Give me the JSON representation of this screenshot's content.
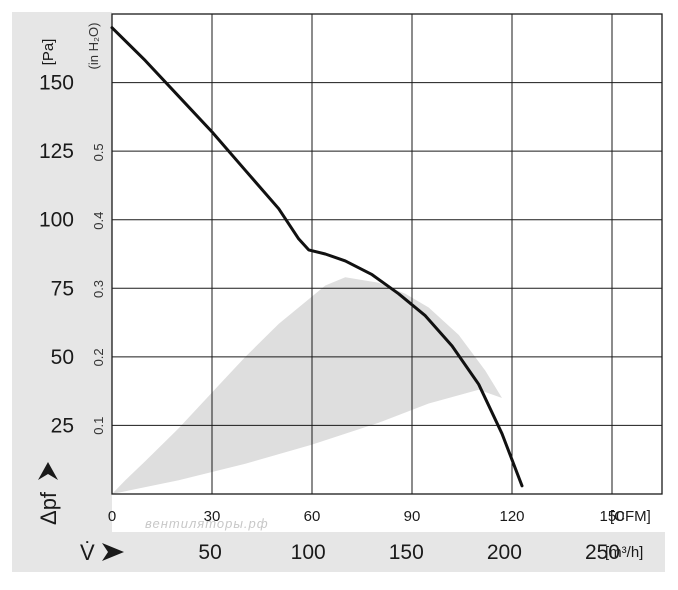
{
  "chart_data": {
    "type": "line",
    "watermark": "вентиляторы.рф",
    "axes": {
      "x_primary": {
        "unit": "[CFM]",
        "range": [
          0,
          165
        ],
        "ticks": [
          0,
          30,
          60,
          90,
          120,
          150
        ]
      },
      "x_secondary": {
        "symbol": "V̇",
        "unit": "[m³/h]",
        "ticks": [
          50,
          100,
          150,
          200,
          250
        ]
      },
      "y_primary": {
        "symbol": "Δpf",
        "unit": "[Pa]",
        "range": [
          0,
          175
        ],
        "ticks": [
          25,
          50,
          75,
          100,
          125,
          150
        ]
      },
      "y_secondary": {
        "unit": "(in H₂O)",
        "ticks": [
          0.1,
          0.2,
          0.3,
          0.4,
          0.5
        ]
      }
    },
    "grid": true,
    "series": [
      {
        "points": [
          [
            0,
            170
          ],
          [
            10,
            158
          ],
          [
            20,
            145
          ],
          [
            30,
            132
          ],
          [
            40,
            118
          ],
          [
            50,
            104
          ],
          [
            56,
            93
          ],
          [
            59,
            89
          ],
          [
            64,
            87.5
          ],
          [
            70,
            85
          ],
          [
            78,
            80
          ],
          [
            86,
            73
          ],
          [
            94,
            65
          ],
          [
            102,
            54
          ],
          [
            110,
            40
          ],
          [
            117,
            22
          ],
          [
            123,
            3
          ]
        ]
      }
    ],
    "shaded_region": {
      "points": [
        [
          0,
          0
        ],
        [
          20,
          5
        ],
        [
          40,
          11
        ],
        [
          60,
          18
        ],
        [
          80,
          26
        ],
        [
          95,
          33
        ],
        [
          110,
          38
        ],
        [
          117,
          35
        ],
        [
          112,
          45
        ],
        [
          104,
          58
        ],
        [
          95,
          68
        ],
        [
          88,
          73
        ],
        [
          80,
          77
        ],
        [
          70,
          79
        ],
        [
          64,
          76
        ],
        [
          60,
          72
        ],
        [
          50,
          62
        ],
        [
          40,
          50
        ],
        [
          30,
          37
        ],
        [
          20,
          24
        ],
        [
          10,
          12
        ],
        [
          4,
          5
        ],
        [
          0,
          0
        ]
      ]
    },
    "colors": {
      "panel": "#e6e6e6",
      "grid": "#1a1a1a",
      "curve": "#111111",
      "shade": "#dedede"
    }
  }
}
